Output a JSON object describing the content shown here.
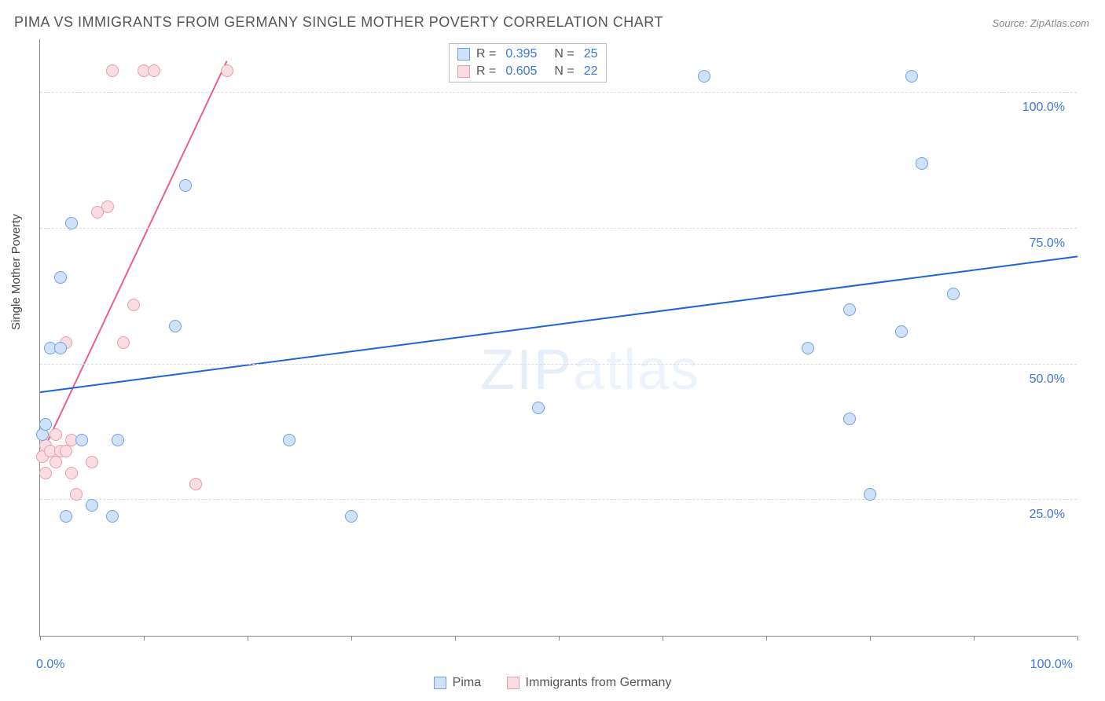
{
  "title": "PIMA VS IMMIGRANTS FROM GERMANY SINGLE MOTHER POVERTY CORRELATION CHART",
  "source": "Source: ZipAtlas.com",
  "ylabel": "Single Mother Poverty",
  "watermark_part1": "ZIP",
  "watermark_part2": "atlas",
  "chart": {
    "type": "scatter",
    "xlim": [
      0,
      100
    ],
    "ylim": [
      0,
      110
    ],
    "x_ticks": [
      0,
      10,
      20,
      30,
      40,
      50,
      60,
      70,
      80,
      90,
      100
    ],
    "y_gridlines": [
      25,
      50,
      75,
      100
    ],
    "x_tick_labels": {
      "0": "0.0%",
      "100": "100.0%"
    },
    "y_tick_labels": {
      "25": "25.0%",
      "50": "50.0%",
      "75": "75.0%",
      "100": "100.0%"
    },
    "background_color": "#ffffff",
    "grid_color": "#dddddd",
    "axis_color": "#888888",
    "label_fontsize": 15,
    "tick_fontsize": 16,
    "tick_label_color": "#3b78d8",
    "marker_radius": 8
  },
  "series": {
    "pima": {
      "label": "Pima",
      "R": "0.395",
      "N": "25",
      "fill_color": "#cfe2f7",
      "stroke_color": "#6fa0e8",
      "line_color": "#1c64d8",
      "line_width": 2,
      "trend": {
        "x1": 0,
        "y1": 45,
        "x2": 100,
        "y2": 70
      },
      "points": [
        {
          "x": 0.2,
          "y": 37
        },
        {
          "x": 0.5,
          "y": 39
        },
        {
          "x": 1.0,
          "y": 53
        },
        {
          "x": 2.0,
          "y": 53
        },
        {
          "x": 2.0,
          "y": 66
        },
        {
          "x": 2.5,
          "y": 22
        },
        {
          "x": 3.0,
          "y": 76
        },
        {
          "x": 4.0,
          "y": 36
        },
        {
          "x": 5.0,
          "y": 24
        },
        {
          "x": 7.0,
          "y": 22
        },
        {
          "x": 7.5,
          "y": 36
        },
        {
          "x": 13.0,
          "y": 57
        },
        {
          "x": 14.0,
          "y": 83
        },
        {
          "x": 24.0,
          "y": 36
        },
        {
          "x": 30.0,
          "y": 22
        },
        {
          "x": 48.0,
          "y": 42
        },
        {
          "x": 64.0,
          "y": 103
        },
        {
          "x": 74.0,
          "y": 53
        },
        {
          "x": 78.0,
          "y": 60
        },
        {
          "x": 78.0,
          "y": 40
        },
        {
          "x": 80.0,
          "y": 26
        },
        {
          "x": 83.0,
          "y": 56
        },
        {
          "x": 84.0,
          "y": 103
        },
        {
          "x": 85.0,
          "y": 87
        },
        {
          "x": 88.0,
          "y": 63
        }
      ]
    },
    "germany": {
      "label": "Immigrants from Germany",
      "R": "0.605",
      "N": "22",
      "fill_color": "#fadce3",
      "stroke_color": "#ec9ab0",
      "line_color": "#ec5f85",
      "line_width": 2,
      "trend": {
        "x1": 0,
        "y1": 33,
        "x2": 18,
        "y2": 106
      },
      "points": [
        {
          "x": 0.2,
          "y": 33
        },
        {
          "x": 0.5,
          "y": 30
        },
        {
          "x": 0.5,
          "y": 35
        },
        {
          "x": 1.0,
          "y": 34
        },
        {
          "x": 1.5,
          "y": 37
        },
        {
          "x": 1.5,
          "y": 32
        },
        {
          "x": 2.0,
          "y": 34
        },
        {
          "x": 2.5,
          "y": 34
        },
        {
          "x": 2.5,
          "y": 54
        },
        {
          "x": 3.0,
          "y": 36
        },
        {
          "x": 3.0,
          "y": 30
        },
        {
          "x": 3.5,
          "y": 26
        },
        {
          "x": 5.0,
          "y": 32
        },
        {
          "x": 5.5,
          "y": 78
        },
        {
          "x": 6.5,
          "y": 79
        },
        {
          "x": 7.0,
          "y": 104
        },
        {
          "x": 8.0,
          "y": 54
        },
        {
          "x": 9.0,
          "y": 61
        },
        {
          "x": 10.0,
          "y": 104
        },
        {
          "x": 11.0,
          "y": 104
        },
        {
          "x": 15.0,
          "y": 28
        },
        {
          "x": 18.0,
          "y": 104
        }
      ]
    }
  },
  "legend_top": {
    "r_prefix": "R = ",
    "n_prefix": "N = "
  }
}
